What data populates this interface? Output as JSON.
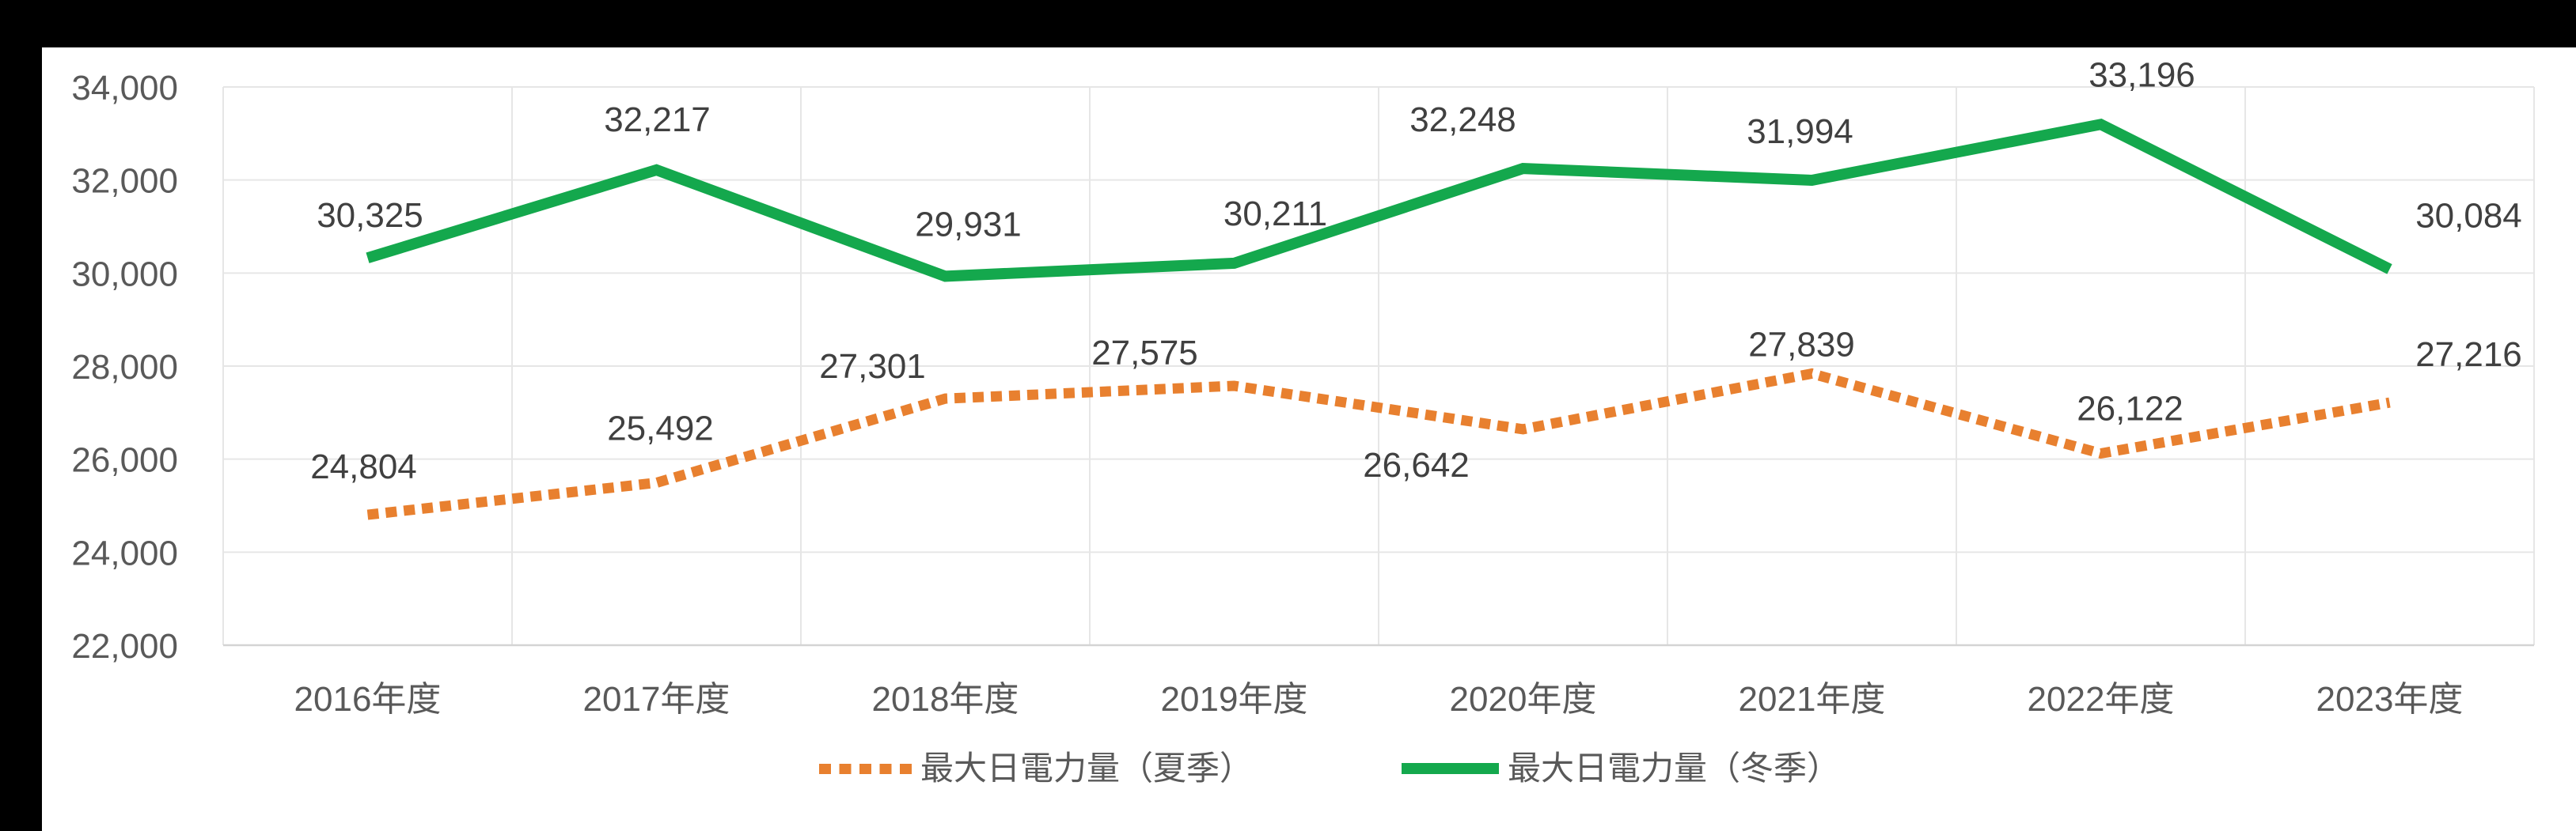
{
  "window": {
    "background_color": "#000000",
    "chart_background_color": "#FFFFFF"
  },
  "chart_data": {
    "type": "line",
    "title": "",
    "categories": [
      "2016年度",
      "2017年度",
      "2018年度",
      "2019年度",
      "2020年度",
      "2021年度",
      "2022年度",
      "2023年度"
    ],
    "series": [
      {
        "name": "最大日電力量（夏季）",
        "color": "#E8802F",
        "line_style": "dotted",
        "values": [
          24804,
          25492,
          27301,
          27575,
          26642,
          27839,
          26122,
          27216
        ],
        "label_offsets": [
          [
            -5,
            -62
          ],
          [
            5,
            -70
          ],
          [
            -92,
            -42
          ],
          [
            -113,
            -43
          ],
          [
            -135,
            44
          ],
          [
            -13,
            -38
          ],
          [
            37,
            -58
          ],
          [
            100,
            -62
          ]
        ]
      },
      {
        "name": "最大日電力量（冬季）",
        "color": "#14A84D",
        "line_style": "solid",
        "values": [
          30325,
          32217,
          29931,
          30211,
          32248,
          31994,
          33196,
          30084
        ],
        "label_offsets": [
          [
            3,
            -55
          ],
          [
            1,
            -65
          ],
          [
            29,
            -67
          ],
          [
            52,
            -64
          ],
          [
            -76,
            -63
          ],
          [
            -15,
            -63
          ],
          [
            52,
            -64
          ],
          [
            100,
            -69
          ]
        ]
      }
    ],
    "ylim": [
      22000,
      34000
    ],
    "yticks": [
      22000,
      24000,
      26000,
      28000,
      30000,
      32000,
      34000
    ],
    "grid": true,
    "legend_position": "bottom",
    "axis_label_color": "#595959",
    "data_label_color": "#404040",
    "gridline_color": "#E6E6E6",
    "axis_line_color": "#D4D4D4"
  }
}
